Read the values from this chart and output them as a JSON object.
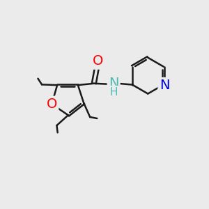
{
  "background_color": "#ebebeb",
  "bond_color": "#1a1a1a",
  "bond_width": 1.8,
  "atom_colors": {
    "O": "#ff0000",
    "N_amide": "#4db8b8",
    "N_pyr": "#0000cc",
    "C": "#1a1a1a",
    "H": "#4db8b8"
  },
  "font_size_atom": 14,
  "font_size_small": 11
}
